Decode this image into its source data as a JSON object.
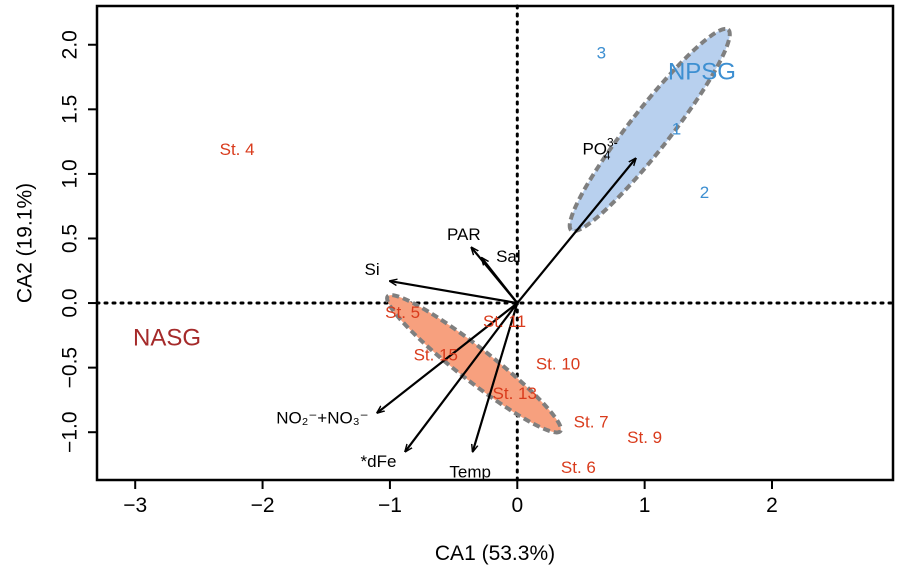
{
  "chart_data": {
    "type": "scatter",
    "subtype": "correspondence-analysis-biplot",
    "xlabel": "CA1 (53.3%)",
    "ylabel": "CA2 (19.1%)",
    "xlim": [
      -3.3,
      2.95
    ],
    "ylim": [
      -1.37,
      2.3
    ],
    "xticks": [
      -3,
      -2,
      -1,
      0,
      1,
      2
    ],
    "yticks": [
      -1.0,
      -0.5,
      0.0,
      0.5,
      1.0,
      1.5,
      2.0
    ],
    "xtick_labels": [
      "−3",
      "−2",
      "−1",
      "0",
      "1",
      "2"
    ],
    "ytick_labels": [
      "−1.0",
      "−0.5",
      "0.0",
      "0.5",
      "1.0",
      "1.5",
      "2.0"
    ],
    "zero_lines": "dotted",
    "colors": {
      "npsg": "#3d8fd1",
      "nasg_group": "#a52a2a",
      "nasg_sites": "#d93b1c",
      "npsg_fill": "#b8d0ee",
      "nasg_fill": "#f7a07e",
      "ellipse_stroke": "#7f7f7f",
      "arrow": "#000000"
    },
    "groups": [
      {
        "name": "NPSG",
        "label_x": 1.45,
        "label_y": 1.78,
        "color": "npsg"
      },
      {
        "name": "NASG",
        "label_x": -2.75,
        "label_y": -0.28,
        "color": "nasg_group"
      }
    ],
    "ellipses": [
      {
        "group": "NPSG",
        "cx": 1.04,
        "cy": 1.34,
        "rx": 1.0,
        "ry": 0.16,
        "angle_deg": 52,
        "fill": "npsg_fill"
      },
      {
        "group": "NASG",
        "cx": -0.34,
        "cy": -0.47,
        "rx": 0.86,
        "ry": 0.13,
        "angle_deg": -38,
        "fill": "nasg_fill"
      }
    ],
    "points": [
      {
        "label": "3",
        "x": 0.66,
        "y": 1.93,
        "group": "NPSG"
      },
      {
        "label": "1",
        "x": 1.25,
        "y": 1.34,
        "group": "NPSG"
      },
      {
        "label": "2",
        "x": 1.47,
        "y": 0.85,
        "group": "NPSG"
      },
      {
        "label": "St. 4",
        "x": -2.2,
        "y": 1.18,
        "group": "NASG"
      },
      {
        "label": "St. 5",
        "x": -0.9,
        "y": -0.08,
        "group": "NASG"
      },
      {
        "label": "St. 11",
        "x": -0.1,
        "y": -0.15,
        "group": "NASG"
      },
      {
        "label": "St. 15",
        "x": -0.64,
        "y": -0.41,
        "group": "NASG"
      },
      {
        "label": "St. 10",
        "x": 0.32,
        "y": -0.48,
        "group": "NASG"
      },
      {
        "label": "St. 13",
        "x": -0.02,
        "y": -0.71,
        "group": "NASG"
      },
      {
        "label": "St. 7",
        "x": 0.58,
        "y": -0.93,
        "group": "NASG"
      },
      {
        "label": "St. 9",
        "x": 1.0,
        "y": -1.05,
        "group": "NASG"
      },
      {
        "label": "St. 6",
        "x": 0.48,
        "y": -1.28,
        "group": "NASG"
      }
    ],
    "vectors": [
      {
        "name": "PO",
        "sup": "3-",
        "sub": "4",
        "x": 0.93,
        "y": 1.12,
        "label_x": 0.65,
        "label_y": 1.18
      },
      {
        "name": "PAR",
        "x": -0.36,
        "y": 0.43,
        "label_x": -0.42,
        "label_y": 0.52
      },
      {
        "name": "Sal",
        "x": -0.28,
        "y": 0.35,
        "label_x": -0.07,
        "label_y": 0.35
      },
      {
        "name": "Si",
        "x": -1.0,
        "y": 0.17,
        "label_x": -1.14,
        "label_y": 0.25
      },
      {
        "name": "NO₂⁻+NO₃⁻",
        "x": -1.1,
        "y": -0.85,
        "label_x": -1.53,
        "label_y": -0.9
      },
      {
        "name": "*dFe",
        "x": -0.88,
        "y": -1.15,
        "label_x": -1.09,
        "label_y": -1.24
      },
      {
        "name": "Temp",
        "x": -0.35,
        "y": -1.15,
        "label_x": -0.37,
        "label_y": -1.32
      }
    ]
  }
}
